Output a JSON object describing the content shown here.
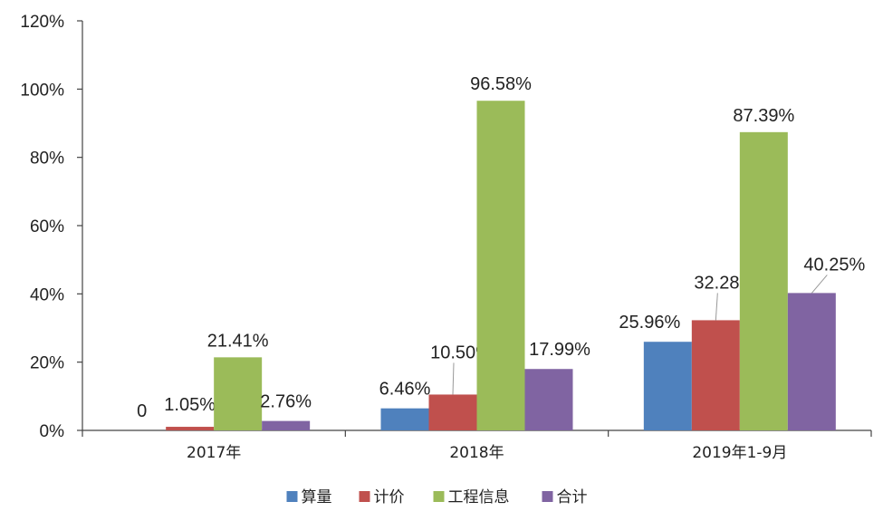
{
  "chart_data": {
    "type": "bar",
    "categories": [
      "2017年",
      "2018年",
      "2019年1-9月"
    ],
    "series": [
      {
        "name": "算量",
        "color": "#4F81BD",
        "values": [
          0,
          6.46,
          25.96
        ],
        "labels": [
          "0",
          "6.46%",
          "25.96%"
        ]
      },
      {
        "name": "计价",
        "color": "#C0504D",
        "values": [
          1.05,
          10.5,
          32.28
        ],
        "labels": [
          "1.05%",
          "10.50%",
          "32.28%"
        ]
      },
      {
        "name": "工程信息",
        "color": "#9BBB59",
        "values": [
          21.41,
          96.58,
          87.39
        ],
        "labels": [
          "21.41%",
          "96.58%",
          "87.39%"
        ]
      },
      {
        "name": "合计",
        "color": "#8064A2",
        "values": [
          2.76,
          17.99,
          40.25
        ],
        "labels": [
          "2.76%",
          "17.99%",
          "40.25%"
        ]
      }
    ],
    "yticks": [
      "0%",
      "20%",
      "40%",
      "60%",
      "80%",
      "100%",
      "120%"
    ],
    "ylim": [
      0,
      120
    ],
    "grid": false,
    "legend_position": "bottom"
  }
}
